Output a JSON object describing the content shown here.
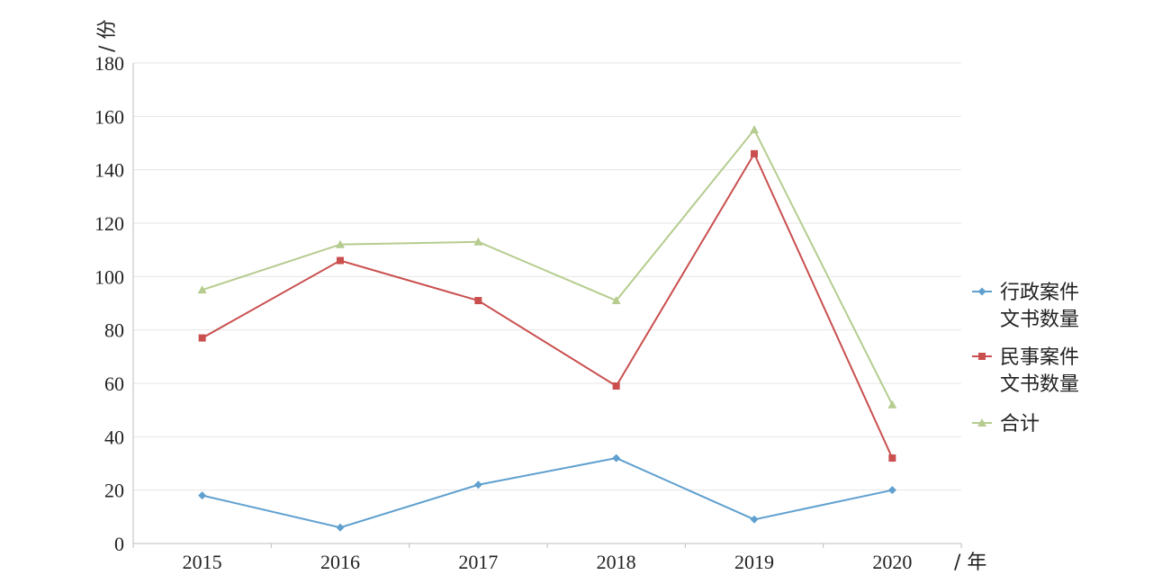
{
  "chart_data": {
    "type": "line",
    "title": "",
    "xlabel": "/ 年",
    "ylabel": "/ 份",
    "categories": [
      "2015",
      "2016",
      "2017",
      "2018",
      "2019",
      "2020"
    ],
    "ylim": [
      0,
      180
    ],
    "yticks": [
      "0",
      "20",
      "40",
      "60",
      "80",
      "100",
      "120",
      "140",
      "160",
      "180"
    ],
    "grid": true,
    "legend_position": "right",
    "series": [
      {
        "name_line1": "行政案件",
        "name_line2": "文书数量",
        "color": "#5fa0cf",
        "marker": "diamond",
        "values": [
          18,
          6,
          22,
          32,
          9,
          20
        ]
      },
      {
        "name_line1": "民事案件",
        "name_line2": "文书数量",
        "color": "#c9504f",
        "marker": "square",
        "values": [
          77,
          106,
          91,
          59,
          146,
          32
        ]
      },
      {
        "name_line1": "合计",
        "name_line2": "",
        "color": "#b5cc8e",
        "marker": "triangle",
        "values": [
          95,
          112,
          113,
          91,
          155,
          52
        ]
      }
    ]
  }
}
